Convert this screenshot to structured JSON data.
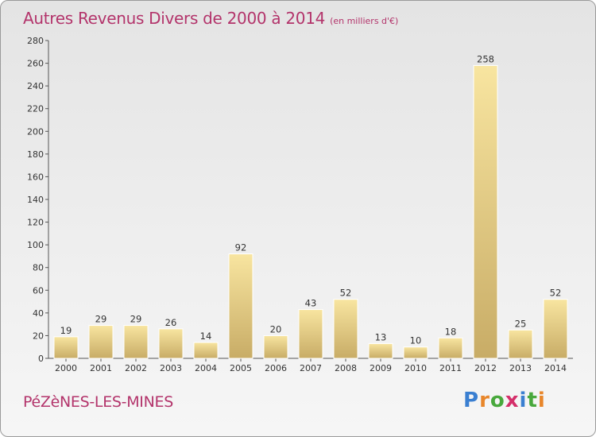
{
  "title": "Autres Revenus Divers de 2000 à 2014",
  "subtitle": "(en milliers d'€)",
  "location": "PéZèNES-LES-MINES",
  "logo": {
    "text": "Proxiti",
    "letter_colors": [
      "#3a7fd1",
      "#e8862a",
      "#48a83c",
      "#d42f6a",
      "#3a7fd1",
      "#48a83c",
      "#e8862a"
    ]
  },
  "colors": {
    "title": "#b3346b",
    "bar_light": "#f8e5a0",
    "bar_dark": "#c8ac66",
    "axis": "#555555"
  },
  "chart_data": {
    "type": "bar",
    "categories": [
      "2000",
      "2001",
      "2002",
      "2003",
      "2004",
      "2005",
      "2006",
      "2007",
      "2008",
      "2009",
      "2010",
      "2011",
      "2012",
      "2013",
      "2014"
    ],
    "values": [
      19,
      29,
      29,
      26,
      14,
      92,
      20,
      43,
      52,
      13,
      10,
      18,
      258,
      25,
      52
    ],
    "ylim": [
      0,
      280
    ],
    "yticks": [
      0,
      20,
      40,
      60,
      80,
      100,
      120,
      140,
      160,
      180,
      200,
      220,
      240,
      260,
      280
    ],
    "data_labels": true,
    "grid": false
  }
}
